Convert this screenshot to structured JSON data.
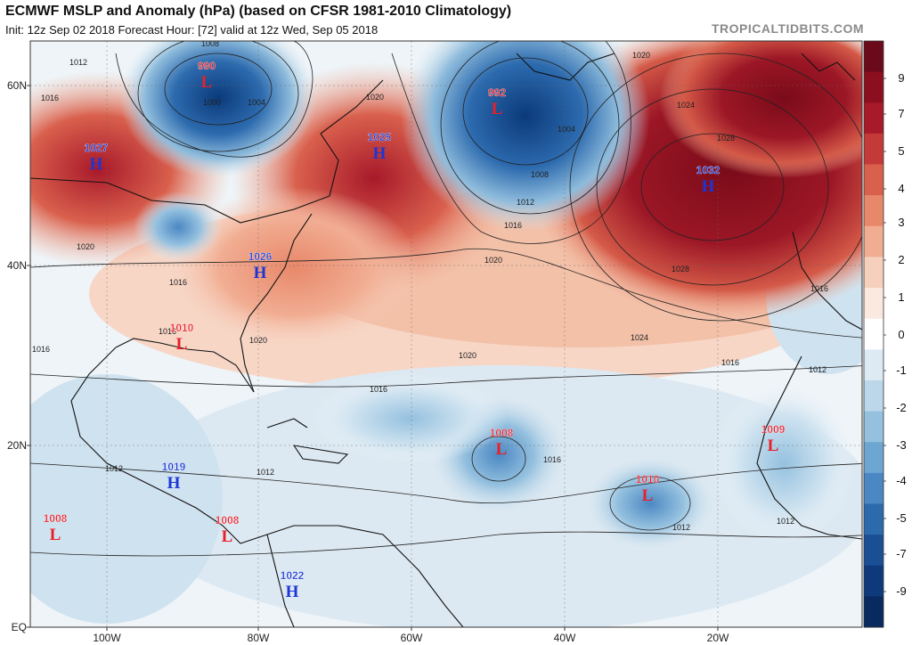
{
  "header": {
    "title": "ECMWF MSLP and Anomaly (hPa) (based on CFSR 1981-2010 Climatology)",
    "subtitle": "Init: 12z Sep 02 2018   Forecast Hour: [72]   valid at 12z Wed, Sep 05 2018",
    "brand": "TROPICALTIDBITS.COM"
  },
  "map": {
    "lat_labels": [
      "60N",
      "40N",
      "20N",
      "EQ"
    ],
    "lon_labels": [
      "100W",
      "80W",
      "60W",
      "40W",
      "20W"
    ],
    "colors": {
      "strong_negative": "#0b3a7a",
      "negative": "#5e9dd0",
      "weak_negative": "#cfe3f0",
      "neutral": "#ffffff",
      "weak_positive": "#f5d6c4",
      "positive": "#e8886a",
      "strong_positive": "#8b0f1e"
    },
    "pressure_centers": [
      {
        "value": "990",
        "letter": "L",
        "kind": "low"
      },
      {
        "value": "992",
        "letter": "L",
        "kind": "low"
      },
      {
        "value": "1027",
        "letter": "H",
        "kind": "high"
      },
      {
        "value": "1025",
        "letter": "H",
        "kind": "high"
      },
      {
        "value": "1032",
        "letter": "H",
        "kind": "high"
      },
      {
        "value": "1026",
        "letter": "H",
        "kind": "high"
      },
      {
        "value": "1010",
        "letter": "L",
        "kind": "low"
      },
      {
        "value": "1008",
        "letter": "L",
        "kind": "low"
      },
      {
        "value": "1009",
        "letter": "L",
        "kind": "low"
      },
      {
        "value": "1019",
        "letter": "H",
        "kind": "high"
      },
      {
        "value": "1010",
        "letter": "L",
        "kind": "low"
      },
      {
        "value": "1008",
        "letter": "L",
        "kind": "low"
      },
      {
        "value": "1008",
        "letter": "L",
        "kind": "low"
      },
      {
        "value": "1022",
        "letter": "H",
        "kind": "high"
      }
    ],
    "isobar_labels": [
      "1008",
      "1012",
      "1016",
      "1000",
      "1004",
      "1008",
      "1004",
      "1012",
      "1016",
      "1024",
      "1028",
      "1028",
      "1020",
      "1020",
      "1020",
      "1024",
      "1020",
      "1016",
      "1016",
      "1016",
      "1012",
      "1012",
      "1016",
      "1012",
      "1012",
      "1016",
      "1012",
      "1016",
      "1020",
      "1016",
      "1020"
    ]
  },
  "colorbar": {
    "labels": [
      "9",
      "7",
      "5",
      "4",
      "3",
      "2",
      "1",
      "0",
      "-1",
      "-2",
      "-3",
      "-4",
      "-5",
      "-7",
      "-9"
    ],
    "colors": [
      "#6b0a1a",
      "#8b0f1e",
      "#a8192a",
      "#c43a39",
      "#d9604d",
      "#e8886a",
      "#f1ad92",
      "#f7d0bd",
      "#fbe9df",
      "#ffffff",
      "#ddeaf3",
      "#bcd7ea",
      "#95c1df",
      "#6ea6d2",
      "#4b88c3",
      "#2c6aae",
      "#1a4f95",
      "#0e3a7b",
      "#082a5e"
    ]
  }
}
